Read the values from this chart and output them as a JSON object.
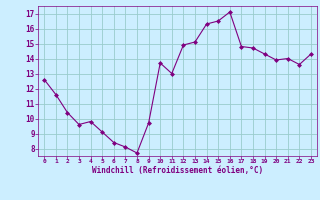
{
  "x": [
    0,
    1,
    2,
    3,
    4,
    5,
    6,
    7,
    8,
    9,
    10,
    11,
    12,
    13,
    14,
    15,
    16,
    17,
    18,
    19,
    20,
    21,
    22,
    23
  ],
  "y": [
    12.6,
    11.6,
    10.4,
    9.6,
    9.8,
    9.1,
    8.4,
    8.1,
    7.7,
    9.7,
    13.7,
    13.0,
    14.9,
    15.1,
    16.3,
    16.5,
    17.1,
    14.8,
    14.7,
    14.3,
    13.9,
    14.0,
    13.6,
    14.3
  ],
  "line_color": "#800080",
  "marker": "D",
  "marker_size": 2,
  "bg_color": "#cceeff",
  "grid_color": "#99cccc",
  "xlabel": "Windchill (Refroidissement éolien,°C)",
  "xlabel_color": "#800080",
  "tick_color": "#800080",
  "label_color": "#800080",
  "ylim": [
    7.5,
    17.5
  ],
  "yticks": [
    8,
    9,
    10,
    11,
    12,
    13,
    14,
    15,
    16,
    17
  ],
  "xlim": [
    -0.5,
    23.5
  ],
  "xticks": [
    0,
    1,
    2,
    3,
    4,
    5,
    6,
    7,
    8,
    9,
    10,
    11,
    12,
    13,
    14,
    15,
    16,
    17,
    18,
    19,
    20,
    21,
    22,
    23
  ],
  "title_color": "#800080",
  "spine_color": "#800080"
}
